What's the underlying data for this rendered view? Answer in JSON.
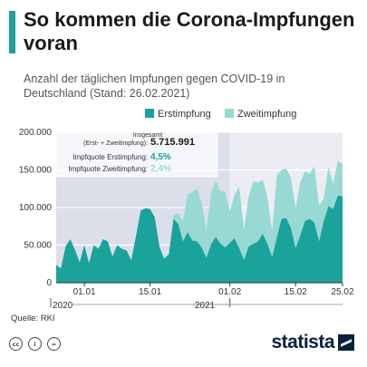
{
  "header": {
    "title": "So kommen die Corona-Impfungen voran",
    "subtitle": "Anzahl der täglichen Impfungen gegen COVID-19 in Deutschland (Stand: 26.02.2021)",
    "accent_color": "#1aa39a"
  },
  "legend": [
    {
      "label": "Erstimpfung",
      "color": "#1aa39a"
    },
    {
      "label": "Zweitimpfung",
      "color": "#99d9d4"
    }
  ],
  "infobox": {
    "insgesamt_label": "Insgesamt",
    "total_label": "(Erst- + Zweitimpfung):",
    "total_value": "5.715.991",
    "q1_label": "Impfquote Erstimpfung:",
    "q1_value": "4,5%",
    "q2_label": "Impfquote Zweitimpfung:",
    "q2_value": "2,4%"
  },
  "source": "Quelle: RKI",
  "brand": "statista",
  "chart_data": {
    "type": "area",
    "stacked": true,
    "ylim": [
      0,
      200000
    ],
    "yticks": [
      {
        "value": 0,
        "label": "0"
      },
      {
        "value": 50000,
        "label": "50.000"
      },
      {
        "value": 100000,
        "label": "100.000"
      },
      {
        "value": 150000,
        "label": "150.000"
      },
      {
        "value": 200000,
        "label": "200.000"
      }
    ],
    "xticks": [
      {
        "index": 6,
        "label": "01.01"
      },
      {
        "index": 20,
        "label": "15.01"
      },
      {
        "index": 37,
        "label": "01.02"
      },
      {
        "index": 51,
        "label": "15.02"
      },
      {
        "index": 61,
        "label": "25.02"
      }
    ],
    "year_labels": [
      {
        "index": 0,
        "label": "2020"
      },
      {
        "index": 37,
        "label": "2021"
      }
    ],
    "series": [
      {
        "name": "Erstimpfung",
        "color": "#1aa39a",
        "values": [
          24000,
          19000,
          48000,
          58000,
          44000,
          27000,
          50000,
          26000,
          50000,
          45000,
          58000,
          55000,
          35000,
          50000,
          45000,
          43000,
          30000,
          62000,
          96000,
          99000,
          98000,
          87000,
          48000,
          32000,
          38000,
          85000,
          78000,
          55000,
          67000,
          56000,
          55000,
          47000,
          33000,
          51000,
          61000,
          52000,
          47000,
          53000,
          59000,
          46000,
          30000,
          48000,
          52000,
          55000,
          65000,
          52000,
          34000,
          60000,
          85000,
          86000,
          73000,
          46000,
          63000,
          82000,
          85000,
          80000,
          55000,
          82000,
          102000,
          98000,
          116000,
          115000
        ]
      },
      {
        "name": "Zweitimpfung",
        "color": "#99d9d4",
        "values": [
          0,
          0,
          0,
          0,
          0,
          0,
          0,
          0,
          0,
          0,
          0,
          0,
          0,
          0,
          0,
          0,
          0,
          0,
          0,
          0,
          0,
          0,
          0,
          0,
          0,
          5000,
          15000,
          27000,
          50000,
          65000,
          70000,
          60000,
          36000,
          70000,
          74000,
          70000,
          74000,
          42000,
          58000,
          82000,
          40000,
          67000,
          83000,
          78000,
          72000,
          62000,
          35000,
          83000,
          65000,
          66000,
          67000,
          53000,
          71000,
          66000,
          60000,
          75000,
          48000,
          30000,
          52000,
          34000,
          46000,
          43000
        ]
      }
    ]
  }
}
